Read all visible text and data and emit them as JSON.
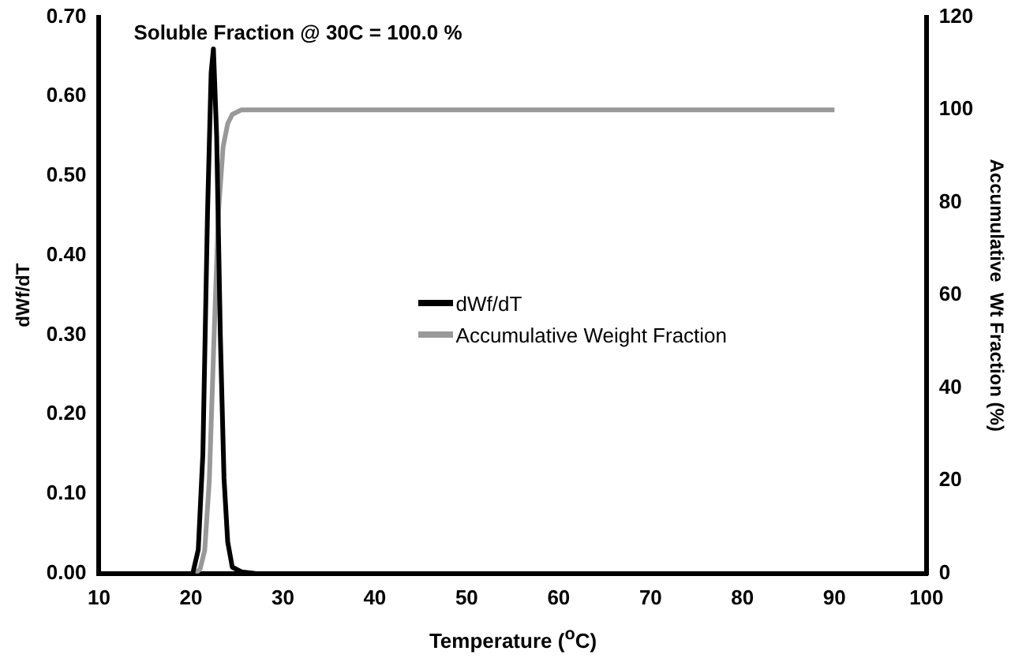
{
  "chart_data": {
    "type": "line",
    "annotations": [
      "Soluble Fraction @ 30C = 100.0 %"
    ],
    "xlabel": "Temperature ($^{o}$C)",
    "ylabel": "dWf/dT",
    "y2label": "Accumulative  Wt Fraction (%)",
    "xlim": [
      10,
      100
    ],
    "xticks": [
      10,
      20,
      30,
      40,
      50,
      60,
      70,
      80,
      90,
      100
    ],
    "ylim": [
      0,
      0.7
    ],
    "yticks": [
      {
        "value": 0,
        "label": "0.00"
      },
      {
        "value": 0.1,
        "label": "0.10"
      },
      {
        "value": 0.2,
        "label": "0.20"
      },
      {
        "value": 0.3,
        "label": "0.30"
      },
      {
        "value": 0.4,
        "label": "0.40"
      },
      {
        "value": 0.5,
        "label": "0.50"
      },
      {
        "value": 0.6,
        "label": "0.60"
      },
      {
        "value": 0.7,
        "label": "0.70"
      }
    ],
    "y2lim": [
      0,
      120
    ],
    "y2ticks": [
      0,
      20,
      40,
      60,
      80,
      100,
      120
    ],
    "grid": false,
    "legend": "right",
    "marker": "none",
    "line_style": "solid",
    "series": [
      {
        "name": "dWf/dT",
        "color": "#000000",
        "axis": "y",
        "x": [
          20.2,
          20.8,
          21.3,
          21.8,
          22.2,
          22.45,
          22.8,
          23.2,
          23.6,
          24.0,
          24.5,
          25.5,
          27
        ],
        "values": [
          0,
          0.03,
          0.15,
          0.45,
          0.63,
          0.66,
          0.55,
          0.3,
          0.12,
          0.04,
          0.008,
          0.002,
          0
        ]
      },
      {
        "name": "Accumulative Weight Fraction",
        "color": "#999999",
        "axis": "y2",
        "x": [
          20.5,
          21,
          21.5,
          22,
          22.5,
          23,
          23.5,
          24,
          24.5,
          25.5,
          30,
          90
        ],
        "values": [
          0,
          1,
          5,
          20,
          50,
          78,
          92,
          97,
          99,
          100,
          100,
          100
        ]
      }
    ]
  }
}
